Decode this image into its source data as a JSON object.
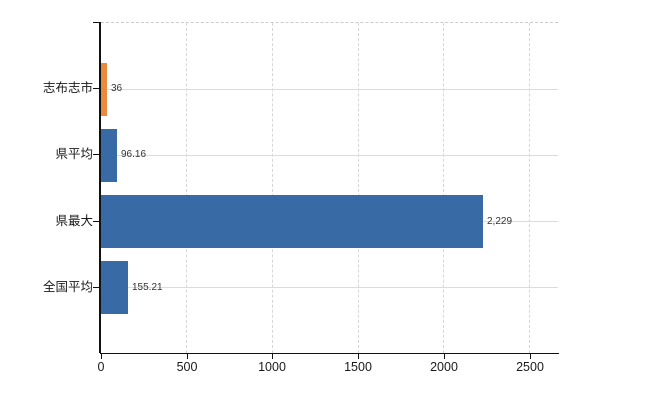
{
  "chart_data": {
    "type": "bar",
    "orientation": "horizontal",
    "title": "",
    "xlabel": "",
    "ylabel": "",
    "categories": [
      "志布志市",
      "県平均",
      "県最大",
      "全国平均"
    ],
    "values": [
      36,
      96.16,
      2229,
      155.21
    ],
    "value_labels": [
      "36",
      "96.16",
      "2,229",
      "155.21"
    ],
    "bar_colors": [
      "#E98A3C",
      "#386BA6",
      "#386BA6",
      "#386BA6"
    ],
    "highlighted_category": "志布志市",
    "x_ticks": [
      0,
      500,
      1000,
      1500,
      2000,
      2500
    ],
    "x_tick_labels": [
      "0",
      "500",
      "1000",
      "1500",
      "2000",
      "2500"
    ],
    "xlim": [
      0,
      2666
    ],
    "grid": true,
    "legend": false,
    "colors": {
      "bar_blue": "#386BA6",
      "bar_orange": "#E98A3C",
      "gridline": "#DCDCDC",
      "gridline_dashed": "#D6D6D6",
      "axis": "#111111",
      "label_text": "#1A1A1A",
      "value_text": "#333333",
      "background": "#FFFFFF"
    }
  }
}
